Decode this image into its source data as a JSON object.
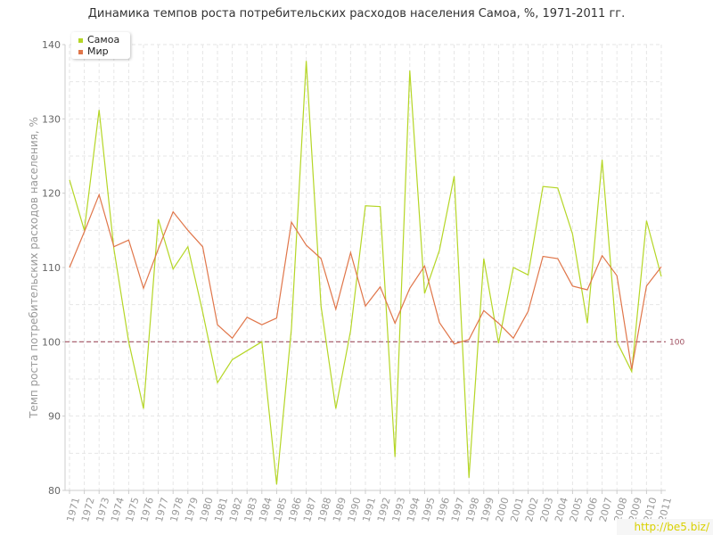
{
  "title": "Динамика темпов роста потребительских расходов населения Самоа, %, 1971-2011 гг.",
  "watermark": "http://be5.biz/",
  "chart_data": {
    "type": "line",
    "title": "Динамика темпов роста потребительских расходов населения Самоа, %, 1971-2011 гг.",
    "ylabel": "Темп роста потребительских расходов населения, %",
    "xlabel": "",
    "ylim": [
      80,
      140
    ],
    "yticks": [
      80,
      90,
      100,
      110,
      120,
      130,
      140
    ],
    "grid": true,
    "legend_position": "top-left",
    "reference_line": {
      "value": 100,
      "label": "100",
      "color": "#a05060"
    },
    "categories": [
      "1971",
      "1972",
      "1973",
      "1974",
      "1975",
      "1976",
      "1977",
      "1978",
      "1979",
      "1980",
      "1981",
      "1982",
      "1983",
      "1984",
      "1985",
      "1986",
      "1987",
      "1988",
      "1989",
      "1990",
      "1991",
      "1992",
      "1993",
      "1994",
      "1995",
      "1996",
      "1997",
      "1998",
      "1999",
      "2000",
      "2001",
      "2002",
      "2003",
      "2004",
      "2005",
      "2006",
      "2007",
      "2008",
      "2009",
      "2010",
      "2011"
    ],
    "series": [
      {
        "name": "Самоа",
        "color": "#b5d626",
        "values": [
          121.8,
          115.0,
          131.2,
          112.5,
          100.0,
          91.0,
          116.5,
          109.8,
          112.8,
          104.0,
          94.5,
          97.6,
          98.8,
          100.0,
          80.8,
          101.8,
          137.8,
          104.8,
          91.0,
          101.5,
          118.3,
          118.2,
          84.5,
          136.5,
          106.5,
          112.3,
          122.3,
          81.7,
          111.2,
          99.8,
          110.0,
          109.0,
          120.9,
          120.7,
          114.5,
          102.5,
          124.5,
          100.0,
          96.0,
          116.3,
          108.8
        ]
      },
      {
        "name": "Мир",
        "color": "#e0764a",
        "values": [
          110.0,
          114.8,
          119.8,
          112.8,
          113.7,
          107.2,
          112.5,
          117.5,
          115.0,
          112.8,
          102.3,
          100.5,
          103.3,
          102.3,
          103.2,
          116.1,
          113.0,
          111.2,
          104.4,
          112.0,
          104.8,
          107.4,
          102.5,
          107.2,
          110.2,
          102.6,
          99.7,
          100.3,
          104.2,
          102.5,
          100.5,
          104.1,
          111.5,
          111.2,
          107.5,
          107.0,
          111.6,
          108.9,
          96.3,
          107.5,
          110.1
        ]
      }
    ]
  }
}
